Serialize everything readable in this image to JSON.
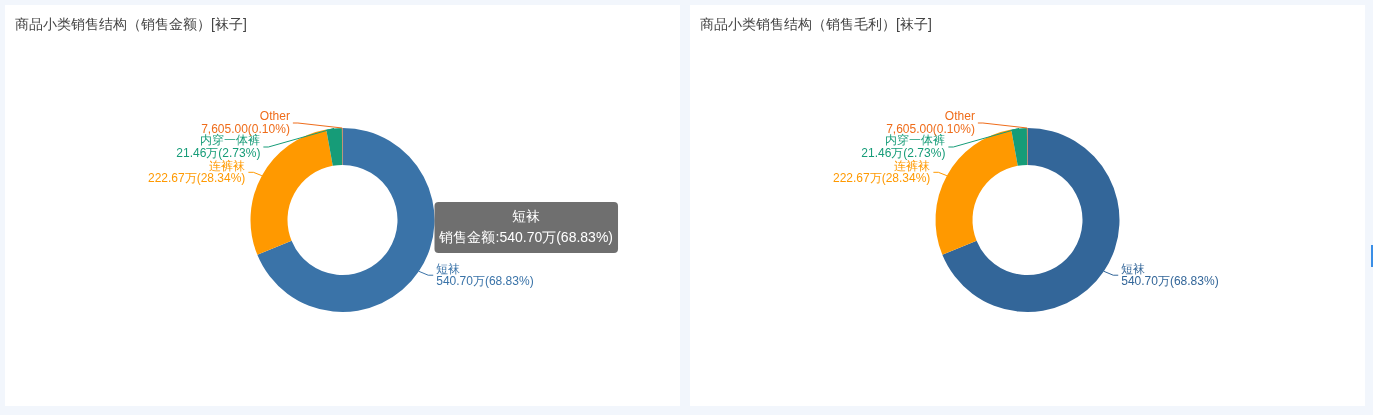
{
  "chart_data": [
    {
      "type": "donut",
      "title": "商品小类销售结构（销售金额）[袜子]",
      "categories": [
        "短袜",
        "连裤袜",
        "内穿一体裤",
        "Other"
      ],
      "values": [
        68.83,
        28.34,
        2.73,
        0.1
      ],
      "colors": [
        "#3a73a8",
        "#ff9900",
        "#169c78",
        "#ef6c1a"
      ],
      "value_labels": [
        "540.70万(68.83%)",
        "222.67万(28.34%)",
        "21.46万(2.73%)",
        "7,605.00(0.10%)"
      ],
      "annotations": [
        "短袜",
        "销售金额:540.70万(68.83%)"
      ]
    },
    {
      "type": "donut",
      "title": "商品小类销售结构（销售毛利）[袜子]",
      "categories": [
        "短袜",
        "连裤袜",
        "内穿一体裤",
        "Other"
      ],
      "values": [
        68.83,
        28.34,
        2.73,
        0.1
      ],
      "colors": [
        "#336699",
        "#ff9900",
        "#169c78",
        "#ef6c1a"
      ],
      "value_labels": [
        "540.70万(68.83%)",
        "222.67万(28.34%)",
        "21.46万(2.73%)",
        "7,605.00(0.10%)"
      ]
    }
  ]
}
